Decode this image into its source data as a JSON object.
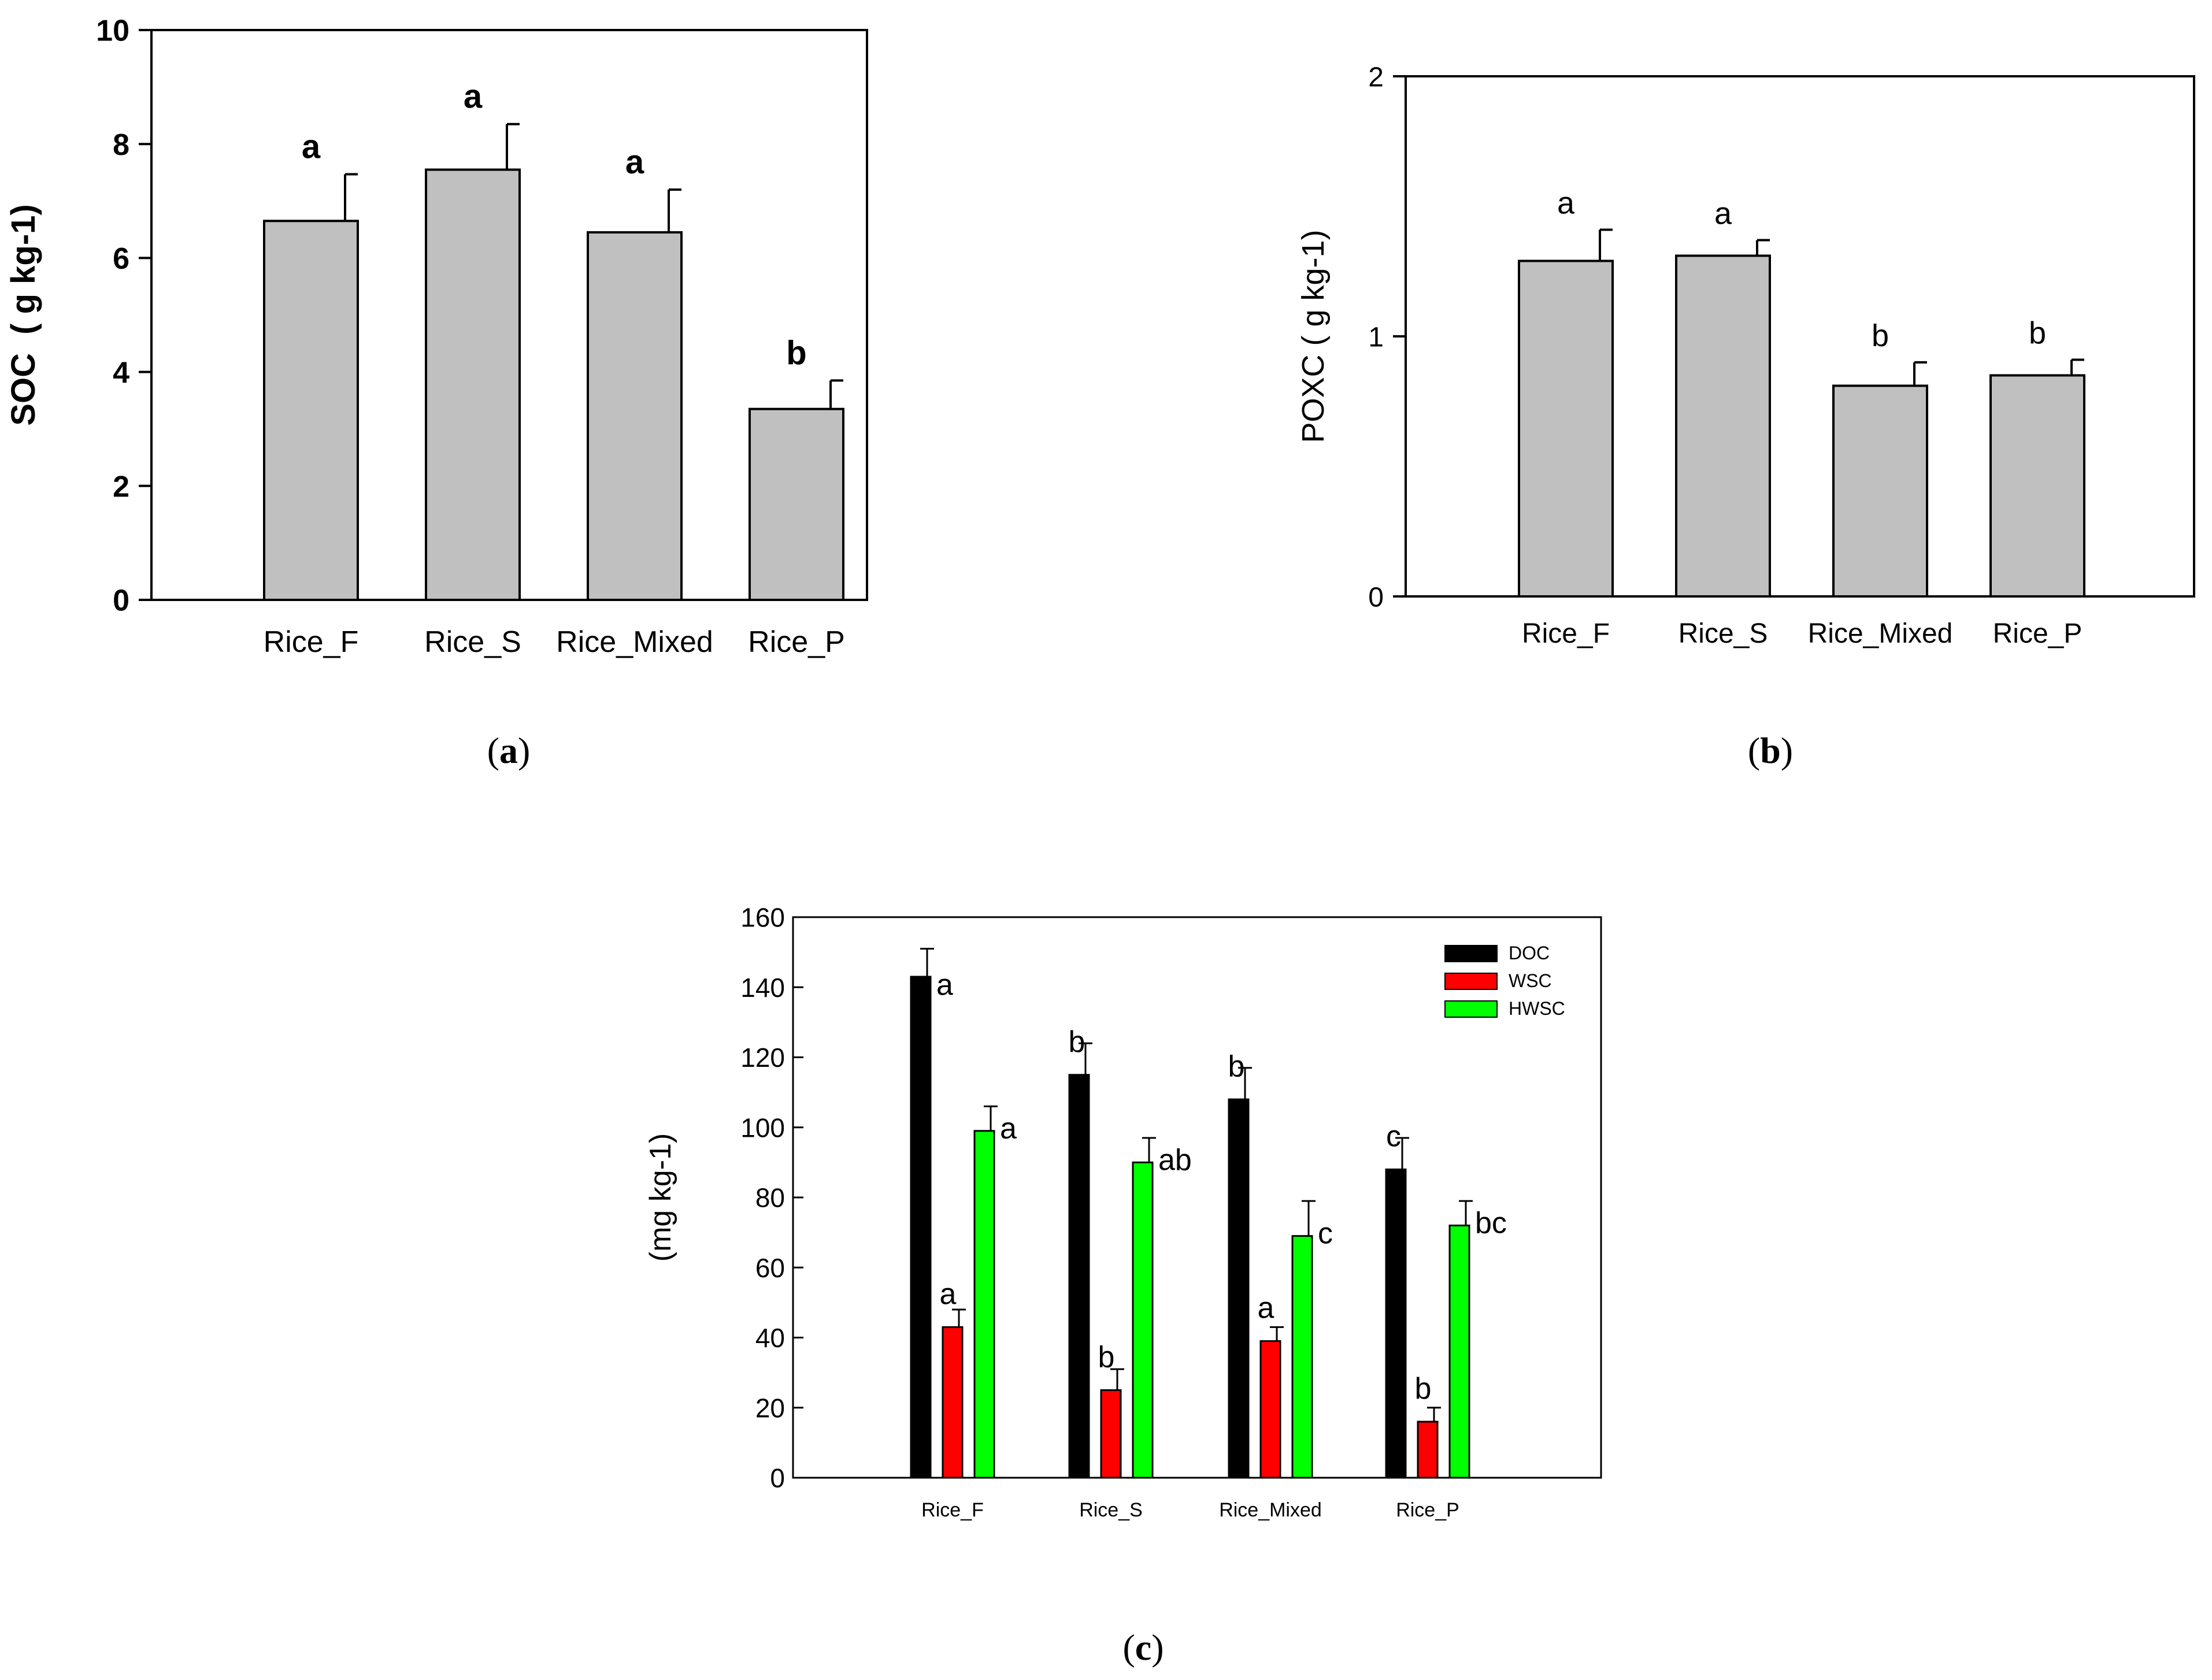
{
  "figure": {
    "panel_letters": {
      "a": "a",
      "b": "b",
      "c": "c"
    }
  },
  "chart_data": [
    {
      "id": "a",
      "type": "bar",
      "title": "",
      "xlabel": "",
      "ylabel": "SOC  ( g kg-1)",
      "ylim": [
        0,
        10
      ],
      "yticks": [
        0,
        2,
        4,
        6,
        8,
        10
      ],
      "categories": [
        "Rice_F",
        "Rice_S",
        "Rice_Mixed",
        "Rice_P"
      ],
      "series": [
        {
          "name": "SOC",
          "color": "#c0c0c0",
          "values": [
            6.65,
            7.55,
            6.45,
            3.35
          ],
          "errors": [
            0.82,
            0.8,
            0.75,
            0.5
          ],
          "letters": [
            "a",
            "a",
            "a",
            "b"
          ]
        }
      ]
    },
    {
      "id": "b",
      "type": "bar",
      "title": "",
      "xlabel": "",
      "ylabel": "POXC ( g kg-1)",
      "ylim": [
        0,
        2
      ],
      "yticks": [
        0,
        1,
        2
      ],
      "categories": [
        "Rice_F",
        "Rice_S",
        "Rice_Mixed",
        "Rice_P"
      ],
      "series": [
        {
          "name": "POXC",
          "color": "#c0c0c0",
          "values": [
            1.29,
            1.31,
            0.81,
            0.85
          ],
          "errors": [
            0.12,
            0.06,
            0.09,
            0.06
          ],
          "letters": [
            "a",
            "a",
            "b",
            "b"
          ]
        }
      ]
    },
    {
      "id": "c",
      "type": "bar",
      "title": "",
      "xlabel": "",
      "ylabel": "(mg kg-1)",
      "ylim": [
        0,
        160
      ],
      "yticks": [
        0,
        20,
        40,
        60,
        80,
        100,
        120,
        140,
        160
      ],
      "categories": [
        "Rice_F",
        "Rice_S",
        "Rice_Mixed",
        "Rice_P"
      ],
      "legend": "top-right",
      "series": [
        {
          "name": "DOC",
          "color": "#000000",
          "values": [
            143,
            115,
            108,
            88
          ],
          "errors": [
            8,
            9,
            9,
            9
          ],
          "letters": [
            "a",
            "b",
            "b",
            "c"
          ]
        },
        {
          "name": "WSC",
          "color": "#ff0000",
          "values": [
            43,
            25,
            39,
            16
          ],
          "errors": [
            5,
            6,
            4,
            4
          ],
          "letters": [
            "a",
            "b",
            "a",
            "b"
          ]
        },
        {
          "name": "HWSC",
          "color": "#00ff00",
          "values": [
            99,
            90,
            69,
            72
          ],
          "errors": [
            7,
            7,
            10,
            7
          ],
          "letters": [
            "a",
            "ab",
            "c",
            "bc"
          ]
        }
      ]
    }
  ]
}
